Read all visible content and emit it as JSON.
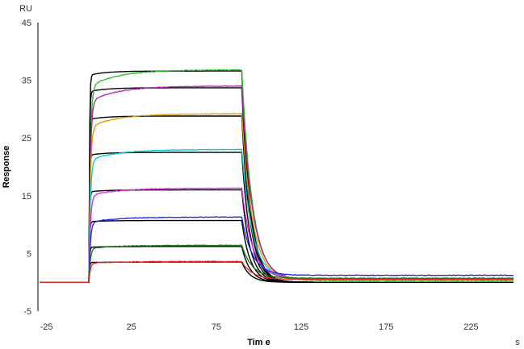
{
  "chart_data": {
    "type": "line",
    "title": "",
    "xlabel": "Tim e",
    "ylabel": "Response",
    "x_unit": "s",
    "y_unit": "RU",
    "xlim": [
      -30,
      250
    ],
    "ylim": [
      -5,
      45
    ],
    "x_ticks": [
      -25,
      25,
      75,
      125,
      175,
      225
    ],
    "y_ticks": [
      -5,
      5,
      15,
      25,
      35,
      45
    ],
    "grid": false,
    "legend": "none",
    "association_start": 0,
    "dissociation_start": 90,
    "fit_color": "#000000",
    "series": [
      {
        "color": "#22bb22",
        "plateau": 36.8,
        "fit_plateau": 36.6,
        "residual": 0.3
      },
      {
        "color": "#aa22aa",
        "plateau": 34.0,
        "fit_plateau": 33.7,
        "residual": 0.5
      },
      {
        "color": "#dd9900",
        "plateau": 29.2,
        "fit_plateau": 28.8,
        "residual": 0.4
      },
      {
        "color": "#00cccc",
        "plateau": 23.0,
        "fit_plateau": 22.5,
        "residual": 0.5
      },
      {
        "color": "#dd22dd",
        "plateau": 16.3,
        "fit_plateau": 16.0,
        "residual": 0.6
      },
      {
        "color": "#2222ee",
        "plateau": 11.3,
        "fit_plateau": 10.7,
        "residual": 1.2
      },
      {
        "color": "#117711",
        "plateau": 6.4,
        "fit_plateau": 6.2,
        "residual": 0.7
      },
      {
        "color": "#ee2222",
        "plateau": 3.6,
        "fit_plateau": 3.5,
        "residual": 0.5
      }
    ]
  }
}
